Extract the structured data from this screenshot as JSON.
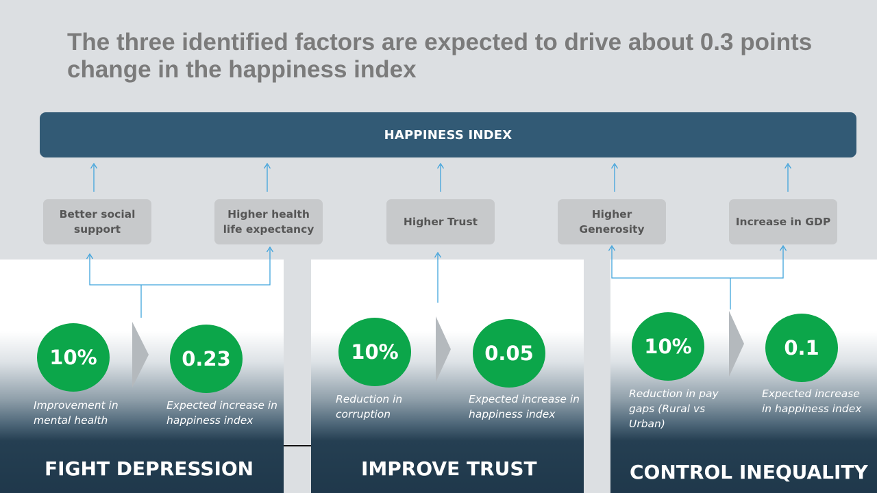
{
  "slide": {
    "title": "The three identified factors are expected to drive about 0.3 points change in the happiness index"
  },
  "index_bar": {
    "label": "HAPPINESS INDEX"
  },
  "factors": [
    {
      "label": "Better social support"
    },
    {
      "label": "Higher health life expectancy"
    },
    {
      "label": "Higher Trust"
    },
    {
      "label": "Higher Generosity"
    },
    {
      "label": "Increase in GDP"
    }
  ],
  "pillars": [
    {
      "name": "FIGHT DEPRESSION",
      "driver_value": "10%",
      "driver_label": "Improvement in mental health",
      "impact_value": "0.23",
      "impact_label": "Expected increase in happiness index"
    },
    {
      "name": "IMPROVE TRUST",
      "driver_value": "10%",
      "driver_label": "Reduction in corruption",
      "impact_value": "0.05",
      "impact_label": "Expected increase in happiness index"
    },
    {
      "name": "CONTROL INEQUALITY",
      "driver_value": "10%",
      "driver_label": "Reduction in pay gaps (Rural vs Urban)",
      "impact_value": "0.1",
      "impact_label": "Expected increase in happiness index"
    }
  ],
  "colors": {
    "index_bar": "#325a75",
    "factor_box": "#c7c9cb",
    "circle": "#0ca64a",
    "connector": "#3fa3dc",
    "title": "#7b7b7b"
  }
}
